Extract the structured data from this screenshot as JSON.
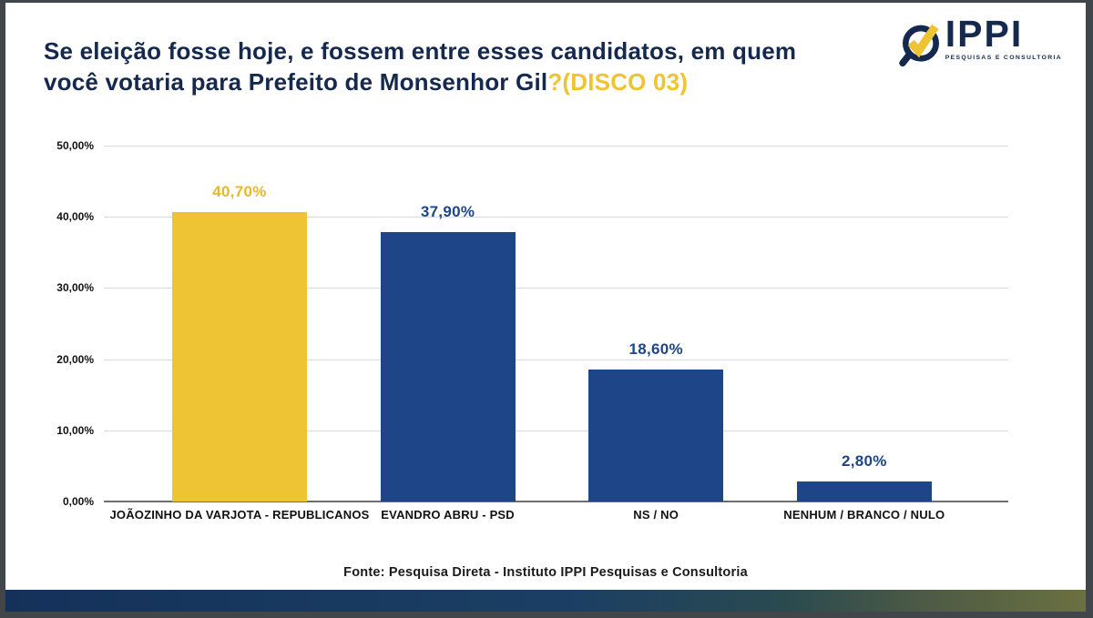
{
  "header": {
    "title_line1": "Se eleição fosse hoje, e fossem entre esses candidatos, em quem",
    "title_line2": "você votaria para Prefeito de Monsenhor Gil",
    "title_highlight": "?(DISCO 03)",
    "logo": {
      "name": "IPPI",
      "tagline": "PESQUISAS E CONSULTORIA",
      "icon": "magnifier-with-checkmark"
    }
  },
  "chart_data": {
    "type": "bar",
    "title": "Se eleição fosse hoje, e fossem entre esses candidatos, em quem você votaria para Prefeito de Monsenhor Gil?(DISCO 03)",
    "categories": [
      "JOÃOZINHO DA VARJOTA - REPUBLICANOS",
      "EVANDRO ABRU - PSD",
      "NS / NO",
      "NENHUM / BRANCO / NULO"
    ],
    "values": [
      40.7,
      37.9,
      18.6,
      2.8
    ],
    "value_labels": [
      "40,70%",
      "37,90%",
      "18,60%",
      "2,80%"
    ],
    "bar_colors": [
      "#EFC434",
      "#1D4587",
      "#1D4587",
      "#1D4587"
    ],
    "value_label_colors": [
      "#E9B72B",
      "#1D4587",
      "#1D4587",
      "#1D4587"
    ],
    "y_ticks": [
      {
        "label": "50,00%",
        "value": 50
      },
      {
        "label": "40,00%",
        "value": 40
      },
      {
        "label": "30,00%",
        "value": 30
      },
      {
        "label": "20,00%",
        "value": 20
      },
      {
        "label": "10,00%",
        "value": 10
      },
      {
        "label": "0,00%",
        "value": 0
      }
    ],
    "ylim": [
      0,
      50
    ],
    "grid": true,
    "legend": "none"
  },
  "footer": {
    "source": "Fonte: Pesquisa Direta - Instituto IPPI Pesquisas e Consultoria"
  },
  "colors": {
    "title_navy": "#15294F",
    "bar_navy": "#1D4587",
    "accent_yellow": "#EFC434",
    "gridline": "#d9d9d9",
    "band_gradient_start": "#14315A",
    "band_gradient_end": "#6B7140"
  }
}
